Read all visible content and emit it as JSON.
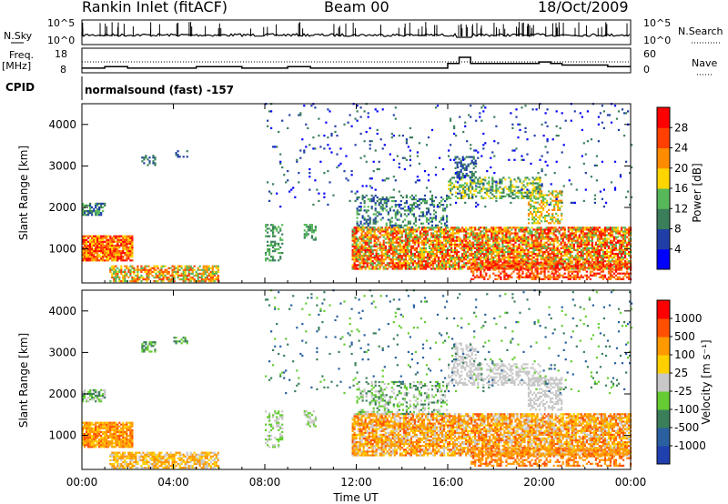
{
  "header": {
    "station": "Rankin Inlet (fitACF)",
    "beam": "Beam 00",
    "date": "18/Oct/2009"
  },
  "left_labels": {
    "nsky": "N.Sky",
    "freq_top": "Freq.",
    "freq_unit": "[MHz]",
    "cpid": "CPID"
  },
  "right_labels": {
    "nsearch": "N.Search",
    "nave": "Nave"
  },
  "cpid_text": "normalsound (fast) -157",
  "colors": {
    "power_scale": [
      "#0000ff",
      "#1f3fa6",
      "#3a7f5a",
      "#57b85a",
      "#ffd500",
      "#ff8c00",
      "#ff4000",
      "#ff0000"
    ],
    "velocity_scale": [
      "#2040b0",
      "#2a60a0",
      "#3a7f5a",
      "#66cc33",
      "#c8c8c8",
      "#ffd000",
      "#ff9900",
      "#ff5000",
      "#ff0000"
    ]
  },
  "chart_data": [
    {
      "type": "line",
      "name": "noise",
      "left_axis_label": "N.Sky",
      "right_axis_label": "N.Search",
      "left_ticks": [
        "10^5",
        "10^0"
      ],
      "right_ticks": [
        "10^5",
        "10^0"
      ]
    },
    {
      "type": "line",
      "name": "frequency",
      "left_ticks": [
        "18",
        "8"
      ],
      "right_ticks": [
        "60",
        "0"
      ],
      "x": [
        0,
        1,
        2,
        3,
        4,
        5,
        6,
        7,
        8,
        9,
        10,
        11,
        12,
        13,
        14,
        15,
        16,
        16.5,
        17,
        18,
        19,
        20,
        20.5,
        21,
        22,
        23,
        24
      ],
      "freq_mhz": [
        11,
        12,
        11,
        11,
        11,
        12,
        12,
        11,
        11,
        12,
        11,
        11,
        11,
        11,
        11,
        11,
        14,
        18,
        14,
        14,
        14,
        15,
        14,
        13,
        13,
        12,
        12
      ]
    },
    {
      "type": "heatmap",
      "title": "Power",
      "ylabel": "Slant Range [km]",
      "xlabel": "Time UT",
      "ylim": [
        180,
        4500
      ],
      "xlim": [
        0,
        24
      ],
      "y_ticks": [
        "1000",
        "2000",
        "3000",
        "4000"
      ],
      "x_ticks": [
        "00:00",
        "04:00",
        "08:00",
        "12:00",
        "16:00",
        "20:00",
        "00:00"
      ],
      "colorbar_label": "Power [dB]",
      "colorbar_ticks": [
        "28",
        "24",
        "20",
        "16",
        "12",
        "8",
        "4"
      ]
    },
    {
      "type": "heatmap",
      "title": "Velocity",
      "ylabel": "Slant Range [km]",
      "xlabel": "Time UT",
      "ylim": [
        180,
        4500
      ],
      "xlim": [
        0,
        24
      ],
      "y_ticks": [
        "1000",
        "2000",
        "3000",
        "4000"
      ],
      "x_ticks": [
        "00:00",
        "04:00",
        "08:00",
        "12:00",
        "16:00",
        "20:00",
        "00:00"
      ],
      "colorbar_label": "Velocity [m s⁻¹]",
      "colorbar_ticks": [
        "1000",
        "500",
        "100",
        "25",
        "-25",
        "-100",
        "-500",
        "-1000"
      ]
    }
  ]
}
